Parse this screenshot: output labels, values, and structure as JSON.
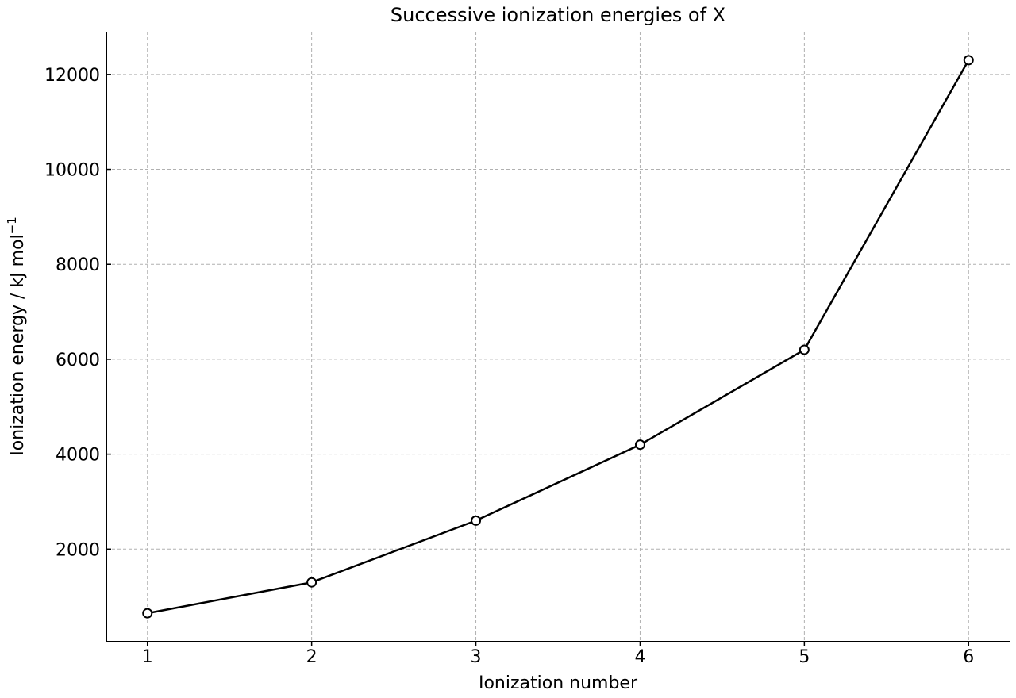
{
  "chart_data": {
    "type": "line",
    "title": "Successive ionization energies of X",
    "xlabel": "Ionization number",
    "ylabel": "Ionization energy / kJ mol",
    "ylabel_superscript": "−1",
    "x": [
      1,
      2,
      3,
      4,
      5,
      6
    ],
    "series": [
      {
        "values": [
          650,
          1300,
          2600,
          4200,
          6200,
          12300
        ]
      }
    ],
    "xlim": [
      0.75,
      6.25
    ],
    "ylim": [
      50,
      12900
    ],
    "xticks": [
      1,
      2,
      3,
      4,
      5,
      6
    ],
    "yticks": [
      2000,
      4000,
      6000,
      8000,
      10000,
      12000
    ],
    "grid": true,
    "marker": "open-circle",
    "colors": {
      "line": "#000000",
      "marker_fill": "#ffffff",
      "grid": "#b0b0b0"
    }
  }
}
